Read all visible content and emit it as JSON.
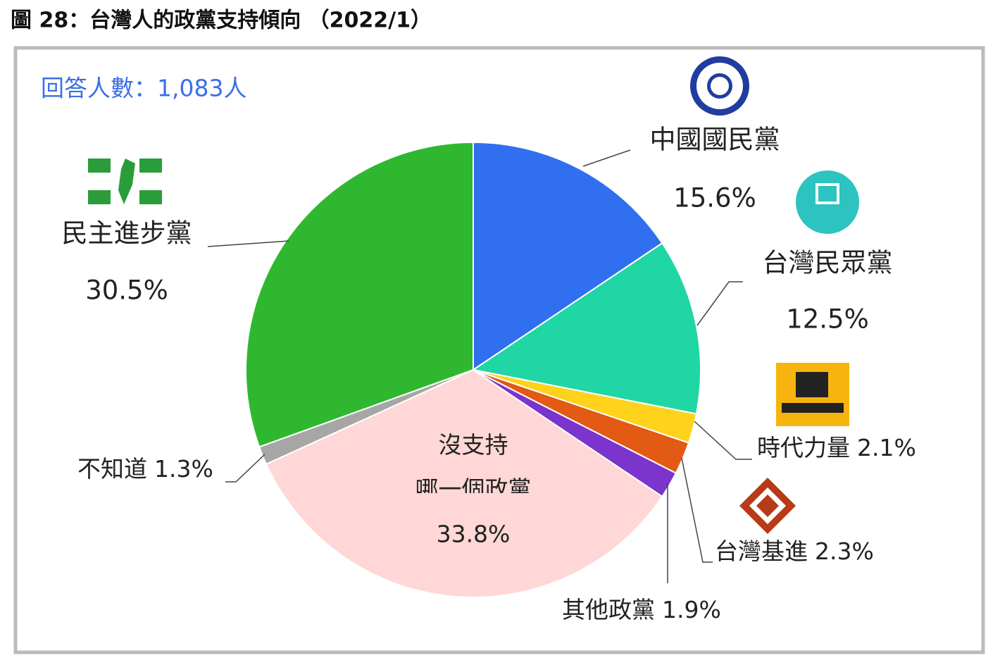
{
  "chart_data": {
    "type": "pie",
    "title": "圖 28：台灣人的政黨支持傾向 （2022/1）",
    "annotation": "回答人數：1,083人",
    "categories": [
      "中國國民黨",
      "台灣民眾黨",
      "時代力量",
      "台灣基進",
      "其他政黨",
      "沒支持\n哪一個政黨",
      "不知道",
      "民主進步黨"
    ],
    "values": [
      15.6,
      12.5,
      2.1,
      2.3,
      1.9,
      33.8,
      1.3,
      30.5
    ],
    "value_labels": [
      "15.6%",
      "12.5%",
      "2.1%",
      "2.3%",
      "1.9%",
      "33.8%",
      "1.3%",
      "30.5%"
    ],
    "colors": [
      "#2f6ff0",
      "#1fd6a4",
      "#ffd21c",
      "#e25a14",
      "#7b34cc",
      "#ffd7d7",
      "#a6a6a6",
      "#2fb82f"
    ]
  }
}
